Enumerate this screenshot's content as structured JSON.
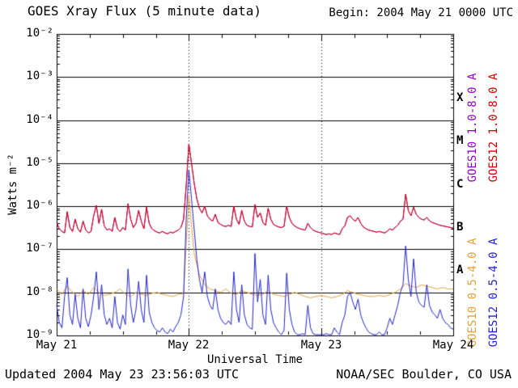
{
  "title": "GOES Xray Flux (5 minute data)",
  "begin_label": "Begin: 2004 May 21 0000 UTC",
  "updated_label": "Updated 2004 May 23 23:56:03 UTC",
  "credit_label": "NOAA/SEC Boulder, CO USA",
  "axes": {
    "y_label": "Watts m⁻²",
    "x_label": "Universal Time",
    "y_ticks": [
      "10⁻²",
      "10⁻³",
      "10⁻⁴",
      "10⁻⁵",
      "10⁻⁶",
      "10⁻⁷",
      "10⁻⁸",
      "10⁻⁹"
    ],
    "x_ticks": [
      "May 21",
      "May 22",
      "May 23",
      "May 24"
    ],
    "class_letters": [
      "X",
      "M",
      "C",
      "B",
      "A"
    ]
  },
  "legend": {
    "goes10_long": {
      "label": "GOES10 1.0-8.0 A",
      "color": "#9400d3"
    },
    "goes12_long": {
      "label": "GOES12 1.0-8.0 A",
      "color": "#d40000"
    },
    "goes10_short": {
      "label": "GOES10 0.5-4.0 A",
      "color": "#e6a23c"
    },
    "goes12_short": {
      "label": "GOES12 0.5-4.0 A",
      "color": "#2222cc"
    }
  },
  "chart_data": {
    "type": "line",
    "title": "GOES Xray Flux (5 minute data)",
    "xlabel": "Universal Time",
    "ylabel": "Watts m-2",
    "x_range_days": [
      0,
      3
    ],
    "x_tick_labels": [
      "May 21",
      "May 22",
      "May 23",
      "May 24"
    ],
    "y_scale": "log",
    "y_log_range": [
      -9,
      -2
    ],
    "flare_class_bands": {
      "A": 1e-08,
      "B": 1e-07,
      "C": 1e-06,
      "M": 1e-05,
      "X": 0.0001
    },
    "grid": {
      "horizontal": "solid line at each decade",
      "vertical": "dotted line at each day boundary"
    },
    "notable_event": {
      "t_days": 1.0,
      "peak_long": 2.8e-05,
      "peak_short": 7e-06,
      "description": "large flare near May 22 0000 UTC"
    },
    "series": [
      {
        "name": "GOES10 1.0-8.0 A",
        "color": "#9400d3",
        "same_as": "GOES12 1.0-8.0 A",
        "note": "overplotted beneath red trace, not separately visible"
      },
      {
        "name": "GOES10 0.5-4.0 A",
        "color": "#e6a23c",
        "dt_days": 0.04,
        "values": [
          1.2e-08,
          9e-09,
          1.4e-08,
          1e-08,
          8e-09,
          1.1e-08,
          9e-09,
          1.3e-08,
          1e-08,
          8.5e-09,
          9e-09,
          1e-08,
          1.2e-08,
          9e-09,
          8e-09,
          1e-08,
          9e-09,
          8.5e-09,
          9.5e-09,
          1e-08,
          9e-09,
          8.5e-09,
          8e-09,
          9e-09,
          9.5e-09,
          1.8e-06,
          8e-08,
          2.5e-08,
          1.5e-08,
          1.2e-08,
          1.1e-08,
          1e-08,
          1.2e-08,
          9.5e-09,
          9e-09,
          1.1e-08,
          1e-08,
          9e-09,
          8.5e-09,
          9e-09,
          1.1e-08,
          9e-09,
          8.5e-09,
          8e-09,
          9e-09,
          1e-08,
          9e-09,
          8e-09,
          7.5e-09,
          8e-09,
          8.5e-09,
          8e-09,
          7.5e-09,
          8e-09,
          9e-09,
          1.1e-08,
          1e-08,
          9e-09,
          8.5e-09,
          8e-09,
          8e-09,
          8.5e-09,
          8e-09,
          9e-09,
          1e-08,
          1.2e-08,
          1.6e-08,
          1.4e-08,
          1.3e-08,
          1.5e-08,
          1.4e-08,
          1.3e-08,
          1.2e-08,
          1.3e-08,
          1.2e-08,
          1.2e-08
        ]
      },
      {
        "name": "GOES12 0.5-4.0 A",
        "color": "#2222cc",
        "dt_days": 0.02,
        "values": [
          5e-09,
          2e-09,
          1.5e-09,
          8e-09,
          2.2e-08,
          3e-09,
          1.8e-09,
          9e-09,
          2.5e-09,
          1.5e-09,
          1.2e-08,
          2.5e-09,
          1.6e-09,
          3e-09,
          8e-09,
          3e-08,
          4e-09,
          1.5e-08,
          3e-09,
          1.8e-09,
          2.5e-09,
          1.5e-09,
          8e-09,
          2e-09,
          1.4e-09,
          3e-09,
          1.8e-09,
          3.5e-08,
          5e-09,
          2e-09,
          4e-09,
          1.8e-08,
          4e-09,
          2e-09,
          2.5e-08,
          3.5e-09,
          2e-09,
          1.5e-09,
          1.3e-09,
          1.2e-09,
          1.5e-09,
          1.2e-09,
          1.1e-09,
          1.4e-09,
          1.2e-09,
          1.6e-09,
          2e-09,
          3e-09,
          8e-09,
          5e-07,
          7e-06,
          1.5e-06,
          3e-07,
          6e-08,
          2e-08,
          1e-08,
          3e-08,
          8e-09,
          5e-09,
          4e-09,
          1.2e-08,
          4e-09,
          2.5e-09,
          2e-09,
          1.8e-09,
          2.2e-09,
          1.8e-09,
          3e-08,
          4e-09,
          2e-09,
          1.5e-08,
          3e-09,
          1.8e-09,
          1.5e-09,
          1.4e-09,
          8e-08,
          6e-09,
          2e-08,
          3e-09,
          1.8e-09,
          2.5e-08,
          4e-09,
          2e-09,
          1.5e-09,
          1.2e-09,
          1e-09,
          1.3e-09,
          2.8e-08,
          4e-09,
          1.8e-09,
          1.2e-09,
          1e-09,
          1e-09,
          1.1e-09,
          1e-09,
          5e-09,
          1.5e-09,
          1.1e-09,
          1e-09,
          1e-09,
          1e-09,
          1e-09,
          1.1e-09,
          1e-09,
          1e-09,
          1.5e-09,
          1.2e-09,
          1e-09,
          2e-09,
          3e-09,
          8e-09,
          1e-08,
          6e-09,
          4e-09,
          7e-09,
          3e-09,
          2e-09,
          1.5e-09,
          1.2e-09,
          1.1e-09,
          1e-09,
          1e-09,
          1.2e-09,
          1e-09,
          1e-09,
          1.5e-09,
          2.5e-09,
          1.8e-09,
          3e-09,
          5e-09,
          1e-08,
          1.5e-08,
          1.2e-07,
          2e-08,
          8e-09,
          6e-08,
          1e-08,
          6e-09,
          5e-09,
          4.5e-09,
          1.5e-08,
          5e-09,
          3.5e-09,
          3e-09,
          2.5e-09,
          4e-09,
          2.5e-09,
          2e-09,
          1.8e-09,
          1.5e-09,
          1.4e-09
        ]
      },
      {
        "name": "GOES12 1.0-8.0 A",
        "color": "#d40000",
        "dt_days": 0.02,
        "values": [
          4.2e-07,
          3e-07,
          2.6e-07,
          2.4e-07,
          7.5e-07,
          3.2e-07,
          2.6e-07,
          5e-07,
          3e-07,
          2.5e-07,
          4.5e-07,
          2.8e-07,
          2.4e-07,
          2.6e-07,
          6e-07,
          1.05e-06,
          4e-07,
          8.5e-07,
          3.5e-07,
          2.8e-07,
          3e-07,
          2.6e-07,
          5.5e-07,
          3e-07,
          2.6e-07,
          3.2e-07,
          2.8e-07,
          1.15e-06,
          5e-07,
          3.2e-07,
          4e-07,
          8e-07,
          4.5e-07,
          3e-07,
          9.5e-07,
          4e-07,
          3e-07,
          2.7e-07,
          2.5e-07,
          2.4e-07,
          2.6e-07,
          2.4e-07,
          2.3e-07,
          2.5e-07,
          2.4e-07,
          2.6e-07,
          2.8e-07,
          3.2e-07,
          5e-07,
          3e-06,
          2.8e-05,
          1e-05,
          3.5e-06,
          1.5e-06,
          9e-07,
          7e-07,
          1e-06,
          6e-07,
          5e-07,
          4.5e-07,
          6.5e-07,
          4.2e-07,
          3.8e-07,
          3.5e-07,
          3.4e-07,
          3.6e-07,
          3.4e-07,
          1e-06,
          5e-07,
          3.8e-07,
          8e-07,
          4.5e-07,
          3.6e-07,
          3.4e-07,
          3.3e-07,
          1.1e-06,
          5.5e-07,
          7e-07,
          4.2e-07,
          3.6e-07,
          9e-07,
          5e-07,
          3.8e-07,
          3.5e-07,
          3.3e-07,
          3.2e-07,
          3.4e-07,
          1e-06,
          5.5e-07,
          4e-07,
          3.5e-07,
          3.2e-07,
          3e-07,
          2.9e-07,
          2.8e-07,
          4e-07,
          3.2e-07,
          2.8e-07,
          2.6e-07,
          2.5e-07,
          2.4e-07,
          2.3e-07,
          2.2e-07,
          2.3e-07,
          2.2e-07,
          2.4e-07,
          2.3e-07,
          2.2e-07,
          3e-07,
          3.5e-07,
          5.5e-07,
          6e-07,
          5e-07,
          4.5e-07,
          5.5e-07,
          4e-07,
          3.3e-07,
          3e-07,
          2.8e-07,
          2.7e-07,
          2.6e-07,
          2.5e-07,
          2.6e-07,
          2.5e-07,
          2.4e-07,
          2.6e-07,
          3e-07,
          2.8e-07,
          3.2e-07,
          3.6e-07,
          4.5e-07,
          5e-07,
          1.9e-06,
          8e-07,
          6e-07,
          9.5e-07,
          6.5e-07,
          5.5e-07,
          5e-07,
          4.8e-07,
          5.5e-07,
          4.6e-07,
          4.2e-07,
          4e-07,
          3.8e-07,
          3.6e-07,
          3.5e-07,
          3.4e-07,
          3.3e-07,
          3.2e-07,
          3.1e-07
        ]
      }
    ]
  }
}
